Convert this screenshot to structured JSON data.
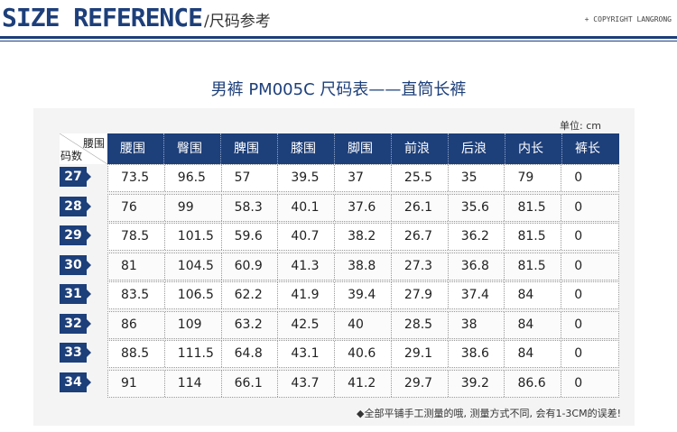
{
  "header": {
    "title": "SIZE REFERENCE",
    "subtitle": "/尺码参考",
    "copyright": "+ COPYRIGHT LANGRONG"
  },
  "table_title": "男裤 PM005C 尺码表——直筒长裤",
  "unit": "单位: cm",
  "corner": {
    "top": "腰围",
    "bottom": "码数"
  },
  "columns": [
    "腰围",
    "臀围",
    "脾围",
    "膝围",
    "脚围",
    "前浪",
    "后浪",
    "内长",
    "裤长"
  ],
  "rows": [
    {
      "size": "27",
      "values": [
        "73.5",
        "96.5",
        "57",
        "39.5",
        "37",
        "25.5",
        "35",
        "79",
        "0"
      ]
    },
    {
      "size": "28",
      "values": [
        "76",
        "99",
        "58.3",
        "40.1",
        "37.6",
        "26.1",
        "35.6",
        "81.5",
        "0"
      ]
    },
    {
      "size": "29",
      "values": [
        "78.5",
        "101.5",
        "59.6",
        "40.7",
        "38.2",
        "26.7",
        "36.2",
        "81.5",
        "0"
      ]
    },
    {
      "size": "30",
      "values": [
        "81",
        "104.5",
        "60.9",
        "41.3",
        "38.8",
        "27.3",
        "36.8",
        "81.5",
        "0"
      ]
    },
    {
      "size": "31",
      "values": [
        "83.5",
        "106.5",
        "62.2",
        "41.9",
        "39.4",
        "27.9",
        "37.4",
        "84",
        "0"
      ]
    },
    {
      "size": "32",
      "values": [
        "86",
        "109",
        "63.2",
        "42.5",
        "40",
        "28.5",
        "38",
        "84",
        "0"
      ]
    },
    {
      "size": "33",
      "values": [
        "88.5",
        "111.5",
        "64.8",
        "43.1",
        "40.6",
        "29.1",
        "38.6",
        "84",
        "0"
      ]
    },
    {
      "size": "34",
      "values": [
        "91",
        "114",
        "66.1",
        "43.7",
        "41.2",
        "29.7",
        "39.2",
        "86.6",
        "0"
      ]
    }
  ],
  "note": "◆全部平铺手工测量的哦, 测量方式不同, 会有1-3CM的误差!"
}
